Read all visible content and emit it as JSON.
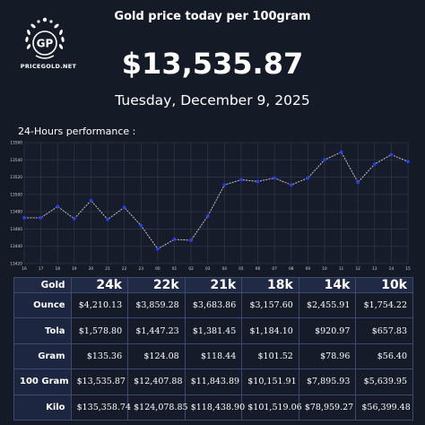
{
  "logo": {
    "monogram": "GP",
    "text": "PRICEGOLD.NET"
  },
  "header": {
    "title": "Gold price today per 100gram",
    "price": "$13,535.87",
    "date": "Tuesday, December 9, 2025"
  },
  "perf_label": "24-Hours performance :",
  "chart_data": {
    "type": "line",
    "title": "24-Hours performance :",
    "xlabel": "",
    "ylabel": "",
    "x": [
      "16",
      "17",
      "18",
      "19",
      "20",
      "21",
      "22",
      "23",
      "00",
      "01",
      "02",
      "03",
      "04",
      "05",
      "06",
      "07",
      "08",
      "09",
      "10",
      "11",
      "12",
      "13",
      "14",
      "15"
    ],
    "series": [
      {
        "values": [
          13473,
          13473,
          13486,
          13472,
          13493,
          13471,
          13485,
          13464,
          13437,
          13448,
          13447,
          13475,
          13511,
          13517,
          13515,
          13519,
          13511,
          13519,
          13540,
          13549,
          13514,
          13535,
          13546,
          13538
        ]
      }
    ],
    "ylim": [
      13420,
      13560
    ],
    "yticks": [
      "13560",
      "13540",
      "13520",
      "13500",
      "13480",
      "13460",
      "13440",
      "13420"
    ],
    "grid": true,
    "colors": {
      "line": "#d8d8d8",
      "marker": "#2a3cf0",
      "grid": "#2c3447"
    }
  },
  "table": {
    "corner": "Gold",
    "columns": [
      "24k",
      "22k",
      "21k",
      "18k",
      "14k",
      "10k"
    ],
    "rows": [
      {
        "label": "Ounce",
        "values": [
          "$4,210.13",
          "$3,859.28",
          "$3,683.86",
          "$3,157.60",
          "$2,455.91",
          "$1,754.22"
        ]
      },
      {
        "label": "Tola",
        "values": [
          "$1,578.80",
          "$1,447.23",
          "$1,381.45",
          "$1,184.10",
          "$920.97",
          "$657.83"
        ]
      },
      {
        "label": "Gram",
        "values": [
          "$135.36",
          "$124.08",
          "$118.44",
          "$101.52",
          "$78.96",
          "$56.40"
        ]
      },
      {
        "label": "100 Gram",
        "values": [
          "$13,535.87",
          "$12,407.88",
          "$11,843.89",
          "$10,151.91",
          "$7,895.93",
          "$5,639.95"
        ]
      },
      {
        "label": "Kilo",
        "values": [
          "$135,358.74",
          "$124,078.85",
          "$118,438.90",
          "$101,519.06",
          "$78,959.27",
          "$56,399.48"
        ]
      }
    ]
  }
}
